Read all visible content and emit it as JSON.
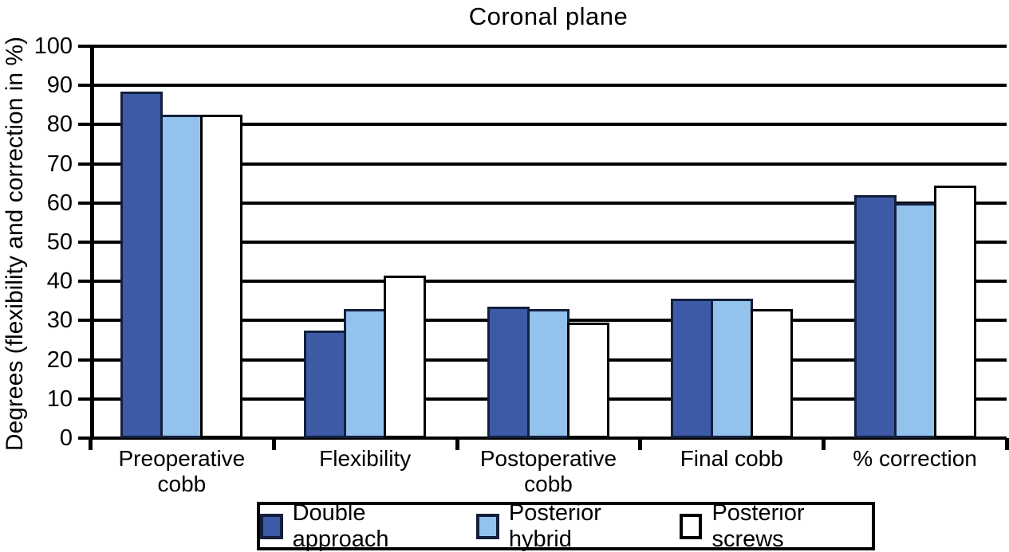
{
  "chart_data": {
    "type": "bar",
    "title": "Coronal plane",
    "ylabel": "Degrees (flexibility and correction in %)",
    "xlabel": "",
    "ylim": [
      0,
      100
    ],
    "yticks": [
      0,
      10,
      20,
      30,
      40,
      50,
      60,
      70,
      80,
      90,
      100
    ],
    "grid": true,
    "legend_position": "bottom",
    "categories": [
      "Preoperative cobb",
      "Flexibility",
      "Postoperative cobb",
      "Final cobb",
      "% correction"
    ],
    "series": [
      {
        "name": "Double approach",
        "color": "#3c5aa5",
        "border_color": "#131f3d",
        "values": [
          88.5,
          27.5,
          33.5,
          35.5,
          62
        ]
      },
      {
        "name": "Posterior hybrid",
        "color": "#93c2ec",
        "border_color": "#131f3d",
        "values": [
          82.5,
          33,
          33,
          35.5,
          60
        ]
      },
      {
        "name": "Posterior screws",
        "color": "#ffffff",
        "border_color": "#000000",
        "values": [
          82.5,
          41.5,
          29.5,
          33,
          64.5
        ]
      }
    ]
  }
}
